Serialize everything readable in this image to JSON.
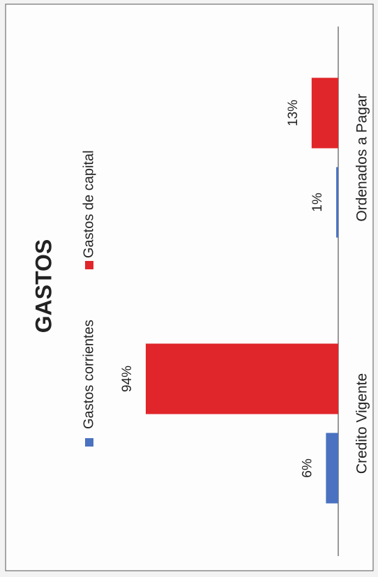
{
  "chart_data": {
    "type": "bar",
    "title": "GASTOS",
    "categories": [
      "Credito Vigente",
      "Ordenados a Pagar"
    ],
    "series": [
      {
        "name": "Gastos corrientes",
        "color": "#4a72c0",
        "values": [
          6,
          1
        ],
        "value_labels": [
          "6%",
          "1%"
        ]
      },
      {
        "name": "Gastos de capital",
        "color": "#e0262a",
        "values": [
          94,
          13
        ],
        "value_labels": [
          "94%",
          "13%"
        ]
      }
    ]
  }
}
